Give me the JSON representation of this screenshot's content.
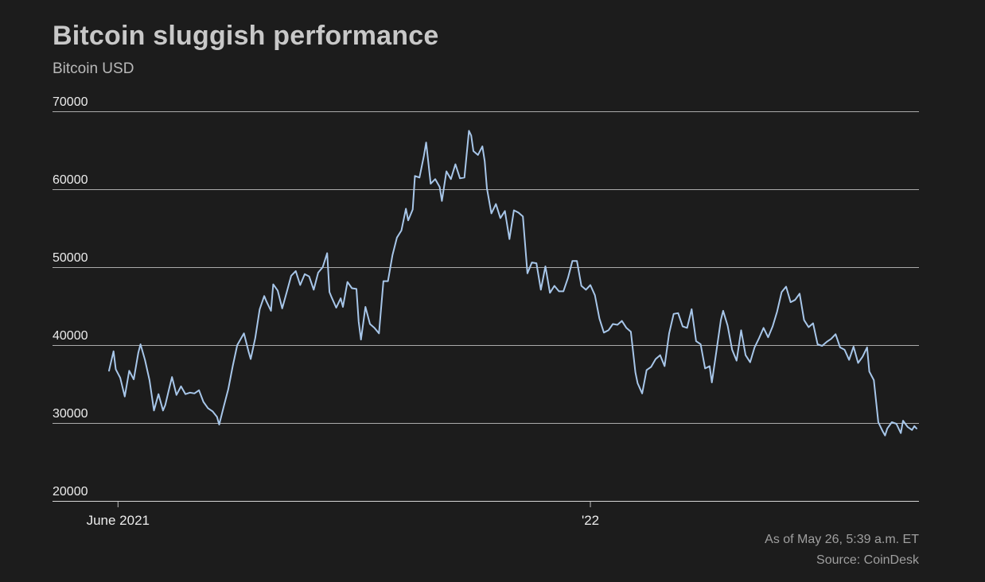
{
  "chart_data": {
    "type": "line",
    "title": "Bitcoin sluggish performance",
    "subtitle": "Bitcoin USD",
    "series_name": "Bitcoin USD",
    "as_of": "As of May 26, 5:39 a.m. ET",
    "source": "Source: CoinDesk",
    "line_color": "#a7c6e9",
    "grid_color": "#cfcfcf",
    "background_color": "#1c1c1c",
    "ylim": [
      20000,
      70000
    ],
    "y_ticks": [
      20000,
      30000,
      40000,
      50000,
      60000,
      70000
    ],
    "x_range": [
      "2021-06-01",
      "2022-05-26"
    ],
    "x_ticks": [
      {
        "date": "2021-06-05",
        "label": "June 2021"
      },
      {
        "date": "2022-01-01",
        "label": "'22"
      }
    ],
    "points": [
      [
        "2021-06-01",
        36700
      ],
      [
        "2021-06-03",
        39200
      ],
      [
        "2021-06-04",
        36900
      ],
      [
        "2021-06-06",
        35800
      ],
      [
        "2021-06-08",
        33400
      ],
      [
        "2021-06-10",
        36700
      ],
      [
        "2021-06-12",
        35600
      ],
      [
        "2021-06-14",
        39000
      ],
      [
        "2021-06-15",
        40100
      ],
      [
        "2021-06-17",
        38100
      ],
      [
        "2021-06-19",
        35500
      ],
      [
        "2021-06-21",
        31600
      ],
      [
        "2021-06-23",
        33700
      ],
      [
        "2021-06-25",
        31600
      ],
      [
        "2021-06-26",
        32300
      ],
      [
        "2021-06-28",
        34700
      ],
      [
        "2021-06-29",
        35900
      ],
      [
        "2021-07-01",
        33600
      ],
      [
        "2021-07-03",
        34700
      ],
      [
        "2021-07-05",
        33700
      ],
      [
        "2021-07-07",
        33900
      ],
      [
        "2021-07-09",
        33800
      ],
      [
        "2021-07-11",
        34200
      ],
      [
        "2021-07-13",
        32700
      ],
      [
        "2021-07-15",
        31900
      ],
      [
        "2021-07-17",
        31500
      ],
      [
        "2021-07-19",
        30800
      ],
      [
        "2021-07-20",
        29800
      ],
      [
        "2021-07-22",
        32100
      ],
      [
        "2021-07-24",
        34300
      ],
      [
        "2021-07-26",
        37300
      ],
      [
        "2021-07-28",
        40000
      ],
      [
        "2021-07-31",
        41500
      ],
      [
        "2021-08-02",
        39200
      ],
      [
        "2021-08-03",
        38200
      ],
      [
        "2021-08-05",
        40900
      ],
      [
        "2021-08-07",
        44600
      ],
      [
        "2021-08-09",
        46300
      ],
      [
        "2021-08-10",
        45600
      ],
      [
        "2021-08-12",
        44400
      ],
      [
        "2021-08-13",
        47800
      ],
      [
        "2021-08-15",
        47000
      ],
      [
        "2021-08-17",
        44700
      ],
      [
        "2021-08-19",
        46800
      ],
      [
        "2021-08-21",
        48900
      ],
      [
        "2021-08-23",
        49500
      ],
      [
        "2021-08-25",
        47700
      ],
      [
        "2021-08-27",
        49100
      ],
      [
        "2021-08-29",
        48800
      ],
      [
        "2021-08-31",
        47100
      ],
      [
        "2021-09-02",
        49300
      ],
      [
        "2021-09-04",
        50000
      ],
      [
        "2021-09-06",
        51800
      ],
      [
        "2021-09-07",
        46800
      ],
      [
        "2021-09-08",
        46100
      ],
      [
        "2021-09-10",
        44800
      ],
      [
        "2021-09-12",
        46000
      ],
      [
        "2021-09-13",
        44900
      ],
      [
        "2021-09-15",
        48100
      ],
      [
        "2021-09-17",
        47300
      ],
      [
        "2021-09-19",
        47200
      ],
      [
        "2021-09-20",
        43000
      ],
      [
        "2021-09-21",
        40700
      ],
      [
        "2021-09-23",
        44900
      ],
      [
        "2021-09-25",
        42700
      ],
      [
        "2021-09-27",
        42200
      ],
      [
        "2021-09-29",
        41500
      ],
      [
        "2021-10-01",
        48200
      ],
      [
        "2021-10-03",
        48200
      ],
      [
        "2021-10-05",
        51500
      ],
      [
        "2021-10-07",
        53800
      ],
      [
        "2021-10-09",
        54700
      ],
      [
        "2021-10-11",
        57500
      ],
      [
        "2021-10-12",
        56000
      ],
      [
        "2021-10-14",
        57400
      ],
      [
        "2021-10-15",
        61700
      ],
      [
        "2021-10-17",
        61500
      ],
      [
        "2021-10-19",
        64300
      ],
      [
        "2021-10-20",
        66000
      ],
      [
        "2021-10-22",
        60700
      ],
      [
        "2021-10-24",
        61300
      ],
      [
        "2021-10-26",
        60300
      ],
      [
        "2021-10-27",
        58500
      ],
      [
        "2021-10-29",
        62300
      ],
      [
        "2021-10-31",
        61300
      ],
      [
        "2021-11-02",
        63200
      ],
      [
        "2021-11-04",
        61400
      ],
      [
        "2021-11-06",
        61500
      ],
      [
        "2021-11-08",
        67500
      ],
      [
        "2021-11-09",
        66900
      ],
      [
        "2021-11-10",
        64900
      ],
      [
        "2021-11-12",
        64400
      ],
      [
        "2021-11-14",
        65500
      ],
      [
        "2021-11-15",
        63600
      ],
      [
        "2021-11-16",
        60100
      ],
      [
        "2021-11-18",
        56900
      ],
      [
        "2021-11-20",
        58100
      ],
      [
        "2021-11-22",
        56300
      ],
      [
        "2021-11-24",
        57200
      ],
      [
        "2021-11-26",
        53600
      ],
      [
        "2021-11-28",
        57300
      ],
      [
        "2021-11-30",
        57000
      ],
      [
        "2021-12-02",
        56500
      ],
      [
        "2021-12-04",
        49200
      ],
      [
        "2021-12-06",
        50600
      ],
      [
        "2021-12-08",
        50500
      ],
      [
        "2021-12-10",
        47100
      ],
      [
        "2021-12-12",
        50100
      ],
      [
        "2021-12-14",
        46700
      ],
      [
        "2021-12-16",
        47600
      ],
      [
        "2021-12-18",
        46900
      ],
      [
        "2021-12-20",
        46900
      ],
      [
        "2021-12-22",
        48600
      ],
      [
        "2021-12-24",
        50800
      ],
      [
        "2021-12-26",
        50800
      ],
      [
        "2021-12-28",
        47600
      ],
      [
        "2021-12-30",
        47100
      ],
      [
        "2022-01-01",
        47700
      ],
      [
        "2022-01-03",
        46400
      ],
      [
        "2022-01-05",
        43400
      ],
      [
        "2022-01-07",
        41600
      ],
      [
        "2022-01-09",
        41900
      ],
      [
        "2022-01-11",
        42700
      ],
      [
        "2022-01-13",
        42600
      ],
      [
        "2022-01-15",
        43100
      ],
      [
        "2022-01-17",
        42200
      ],
      [
        "2022-01-19",
        41700
      ],
      [
        "2022-01-21",
        36500
      ],
      [
        "2022-01-22",
        35100
      ],
      [
        "2022-01-24",
        33800
      ],
      [
        "2022-01-26",
        36800
      ],
      [
        "2022-01-28",
        37200
      ],
      [
        "2022-01-30",
        38200
      ],
      [
        "2022-02-01",
        38700
      ],
      [
        "2022-02-03",
        37300
      ],
      [
        "2022-02-05",
        41500
      ],
      [
        "2022-02-07",
        44000
      ],
      [
        "2022-02-09",
        44100
      ],
      [
        "2022-02-11",
        42400
      ],
      [
        "2022-02-13",
        42200
      ],
      [
        "2022-02-15",
        44600
      ],
      [
        "2022-02-17",
        40500
      ],
      [
        "2022-02-19",
        40100
      ],
      [
        "2022-02-21",
        37000
      ],
      [
        "2022-02-23",
        37300
      ],
      [
        "2022-02-24",
        35200
      ],
      [
        "2022-02-26",
        39200
      ],
      [
        "2022-02-28",
        43200
      ],
      [
        "2022-03-01",
        44400
      ],
      [
        "2022-03-03",
        42500
      ],
      [
        "2022-03-05",
        39400
      ],
      [
        "2022-03-07",
        38000
      ],
      [
        "2022-03-09",
        41900
      ],
      [
        "2022-03-11",
        38700
      ],
      [
        "2022-03-13",
        37800
      ],
      [
        "2022-03-15",
        39700
      ],
      [
        "2022-03-17",
        40900
      ],
      [
        "2022-03-19",
        42200
      ],
      [
        "2022-03-21",
        41000
      ],
      [
        "2022-03-23",
        42400
      ],
      [
        "2022-03-25",
        44300
      ],
      [
        "2022-03-27",
        46800
      ],
      [
        "2022-03-29",
        47500
      ],
      [
        "2022-03-31",
        45500
      ],
      [
        "2022-04-02",
        45800
      ],
      [
        "2022-04-04",
        46600
      ],
      [
        "2022-04-06",
        43200
      ],
      [
        "2022-04-08",
        42300
      ],
      [
        "2022-04-10",
        42800
      ],
      [
        "2022-04-12",
        40100
      ],
      [
        "2022-04-14",
        39900
      ],
      [
        "2022-04-16",
        40400
      ],
      [
        "2022-04-18",
        40800
      ],
      [
        "2022-04-20",
        41400
      ],
      [
        "2022-04-22",
        39700
      ],
      [
        "2022-04-24",
        39400
      ],
      [
        "2022-04-26",
        38100
      ],
      [
        "2022-04-28",
        39800
      ],
      [
        "2022-04-30",
        37700
      ],
      [
        "2022-05-02",
        38500
      ],
      [
        "2022-05-04",
        39700
      ],
      [
        "2022-05-05",
        36600
      ],
      [
        "2022-05-07",
        35500
      ],
      [
        "2022-05-09",
        30100
      ],
      [
        "2022-05-11",
        28900
      ],
      [
        "2022-05-12",
        28400
      ],
      [
        "2022-05-13",
        29300
      ],
      [
        "2022-05-15",
        30100
      ],
      [
        "2022-05-17",
        29900
      ],
      [
        "2022-05-19",
        28700
      ],
      [
        "2022-05-20",
        30300
      ],
      [
        "2022-05-22",
        29500
      ],
      [
        "2022-05-24",
        29100
      ],
      [
        "2022-05-25",
        29600
      ],
      [
        "2022-05-26",
        29300
      ]
    ]
  }
}
